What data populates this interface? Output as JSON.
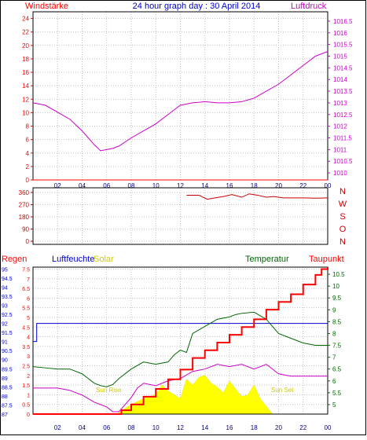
{
  "title": "24 hour graph day : 30 April 2014",
  "colors": {
    "frame": "#000000",
    "grid": "#c0c0c0",
    "wind": "#ff0000",
    "pressure": "#cc00cc",
    "direction": "#cc0000",
    "humidity": "#0000cc",
    "temperature": "#006600",
    "dewpoint": "#cc00cc",
    "rain": "#ff0000",
    "solar": "#ffff00",
    "title": "#0000cc"
  },
  "chart_data": [
    {
      "type": "line",
      "left_label": "Windstärke",
      "right_label": "Luftdruck",
      "x_ticks": [
        "02",
        "04",
        "06",
        "08",
        "10",
        "12",
        "14",
        "16",
        "18",
        "20",
        "22",
        "00"
      ],
      "y_left_ticks": [
        "0",
        "2",
        "4",
        "6",
        "8",
        "10",
        "12",
        "14",
        "16",
        "18",
        "20",
        "22",
        "24"
      ],
      "y_right_ticks": [
        "1010",
        "1010.5",
        "1011",
        "1011.5",
        "1012",
        "1012.5",
        "1013",
        "1013.5",
        "1014",
        "1014.5",
        "1015",
        "1015.5",
        "1016",
        "1016.5"
      ],
      "ylim_left": [
        0,
        25
      ],
      "ylim_right": [
        1009.7,
        1016.9
      ],
      "series": [
        {
          "name": "Windstärke",
          "axis": "left",
          "color": "#ff0000",
          "x": [
            0,
            24
          ],
          "values": [
            0,
            0
          ]
        },
        {
          "name": "Luftdruck",
          "axis": "right",
          "color": "#cc00cc",
          "x": [
            0,
            1,
            2,
            3,
            4,
            4.5,
            5,
            5.5,
            6,
            6.5,
            7,
            8,
            9,
            10,
            11,
            12,
            13,
            14,
            15,
            16,
            17,
            18,
            19,
            20,
            21,
            22,
            23,
            23.5,
            24
          ],
          "values": [
            1013.0,
            1012.9,
            1012.6,
            1012.3,
            1011.8,
            1011.5,
            1011.2,
            1010.95,
            1011.0,
            1011.05,
            1011.15,
            1011.5,
            1011.8,
            1012.1,
            1012.5,
            1012.9,
            1013.0,
            1013.05,
            1013.0,
            1013.0,
            1013.05,
            1013.2,
            1013.5,
            1013.8,
            1014.2,
            1014.6,
            1015.0,
            1015.1,
            1015.2
          ]
        }
      ]
    },
    {
      "type": "line",
      "y_ticks": [
        "0",
        "90",
        "180",
        "270",
        "360"
      ],
      "y_right_labels": [
        "N",
        "W",
        "S",
        "O",
        "N"
      ],
      "ylim": [
        0,
        360
      ],
      "series": [
        {
          "name": "Windrichtung",
          "color": "#cc0000",
          "x": [
            12.5,
            13.5,
            14.2,
            14.8,
            15.5,
            16.2,
            17,
            17.6,
            18.3,
            19,
            19.6,
            20.4,
            21,
            22,
            23,
            24
          ],
          "values": [
            340,
            340,
            310,
            320,
            330,
            345,
            325,
            350,
            340,
            325,
            330,
            320,
            320,
            320,
            318,
            320
          ]
        }
      ]
    },
    {
      "type": "line",
      "labels": {
        "regen": "Regen",
        "luftfeuchte": "Luftfeuchte",
        "solar": "Solar",
        "temperatur": "Temperatur",
        "taupunkt": "Taupunkt",
        "sunrise": "Sun Rise",
        "sunset": "Sun Set"
      },
      "x_ticks": [
        "02",
        "04",
        "06",
        "08",
        "10",
        "12",
        "14",
        "16",
        "18",
        "20",
        "22",
        "00"
      ],
      "rain_ticks": [
        "0",
        "0.5",
        "1",
        "1.5",
        "2",
        "2.5",
        "3",
        "3.5",
        "4",
        "4.5",
        "5",
        "5.5",
        "6",
        "6.5",
        "7",
        "7.5"
      ],
      "humidity_ticks": [
        "87",
        "87.5",
        "88",
        "88.5",
        "89",
        "89.5",
        "90",
        "90.5",
        "91",
        "91.5",
        "92",
        "92.5",
        "93",
        "93.5",
        "94",
        "94.5",
        "95"
      ],
      "temp_ticks": [
        "5",
        "5.5",
        "6",
        "6.5",
        "7",
        "7.5",
        "8",
        "8.5",
        "9",
        "9.5",
        "10",
        "10.5"
      ],
      "ylim_rain": [
        0,
        7.6
      ],
      "ylim_humidity": [
        87,
        95.1
      ],
      "ylim_temp": [
        4.6,
        10.8
      ],
      "series": [
        {
          "name": "Luftfeuchte",
          "axis": "humidity",
          "color": "#0000cc",
          "x": [
            0,
            0.3,
            0.3,
            24
          ],
          "values": [
            91,
            91,
            92,
            92
          ]
        },
        {
          "name": "Temperatur",
          "axis": "temp",
          "color": "#006600",
          "x": [
            0,
            1,
            2,
            3,
            4,
            4.5,
            5,
            5.5,
            6,
            6.5,
            7,
            8,
            9,
            10,
            11,
            11.5,
            12,
            12.5,
            13,
            14,
            15,
            16,
            16.5,
            17,
            18,
            19,
            20,
            21,
            22,
            23,
            24
          ],
          "values": [
            6.6,
            6.55,
            6.5,
            6.5,
            6.3,
            6.1,
            5.9,
            5.8,
            5.75,
            5.85,
            6.1,
            6.5,
            6.8,
            6.7,
            6.8,
            7.1,
            7.3,
            7.2,
            8.0,
            8.3,
            8.6,
            8.7,
            8.8,
            8.85,
            8.9,
            8.6,
            8.0,
            7.8,
            7.6,
            7.5,
            7.5
          ]
        },
        {
          "name": "Taupunkt",
          "axis": "temp",
          "color": "#cc00cc",
          "x": [
            0,
            1,
            2,
            3,
            4,
            5,
            6,
            6.5,
            7,
            8,
            8.5,
            9,
            10,
            11,
            12,
            13,
            14,
            15,
            16,
            17,
            18,
            19,
            20,
            21,
            22,
            23,
            24
          ],
          "values": [
            5.7,
            5.7,
            5.7,
            5.6,
            5.4,
            5.1,
            4.9,
            4.7,
            4.7,
            5.3,
            5.7,
            5.9,
            5.8,
            6.0,
            6.1,
            6.4,
            6.5,
            6.7,
            6.6,
            6.7,
            6.5,
            6.7,
            6.3,
            6.2,
            6.2,
            6.2,
            6.2
          ]
        },
        {
          "name": "Regen",
          "axis": "rain",
          "color": "#ff0000",
          "x": [
            0,
            6.8,
            7.2,
            8,
            9,
            10,
            11,
            12,
            13,
            14,
            15,
            16,
            17,
            18,
            19,
            20,
            21,
            22,
            23,
            23.5,
            24
          ],
          "values": [
            0,
            0,
            0.2,
            0.5,
            0.9,
            1.3,
            1.8,
            2.3,
            2.9,
            3.3,
            3.7,
            4.1,
            4.5,
            4.9,
            5.4,
            5.8,
            6.2,
            6.7,
            7.2,
            7.5,
            7.6
          ]
        },
        {
          "name": "Solar",
          "axis": "rain",
          "color": "#ffff00",
          "x": [
            6.8,
            7.5,
            8,
            9,
            10,
            10.5,
            11,
            12,
            12.5,
            13,
            13.5,
            14,
            14.5,
            15,
            15.5,
            16,
            16.5,
            17,
            17.5,
            18,
            18.5,
            19,
            19.5
          ],
          "values": [
            0,
            0.3,
            0.5,
            0.8,
            1.0,
            1.5,
            1.2,
            0.8,
            1.8,
            1.5,
            1.9,
            2.0,
            1.6,
            1.4,
            1.1,
            1.7,
            1.3,
            0.9,
            1.0,
            1.5,
            0.8,
            0.4,
            0
          ]
        }
      ]
    }
  ]
}
